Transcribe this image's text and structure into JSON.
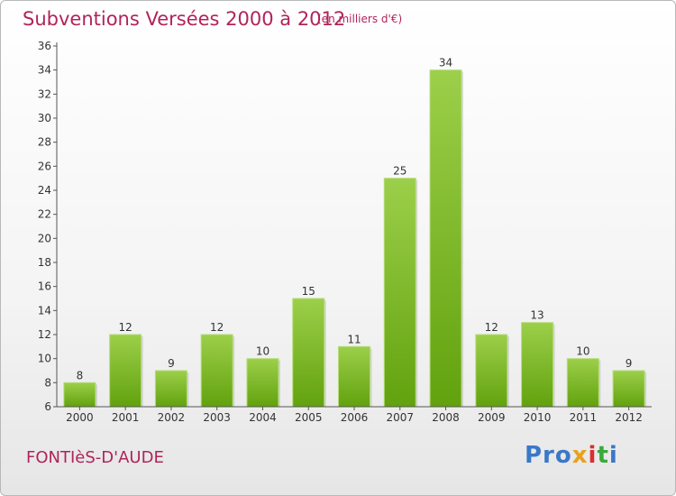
{
  "header": {
    "title": "Subventions Versées 2000 à 2012",
    "unit": "(en milliers d'€)"
  },
  "footer": {
    "place": "FONTIèS-D'AUDE",
    "logo": [
      "Pro",
      "x",
      "i",
      "t",
      "i"
    ]
  },
  "colors": {
    "accent": "#b0245a",
    "bar_light": "#9ccf4a",
    "bar_dark": "#62a20e"
  },
  "chart_data": {
    "type": "bar",
    "categories": [
      "2000",
      "2001",
      "2002",
      "2003",
      "2004",
      "2005",
      "2006",
      "2007",
      "2008",
      "2009",
      "2010",
      "2011",
      "2012"
    ],
    "values": [
      8,
      12,
      9,
      12,
      10,
      15,
      11,
      25,
      34,
      12,
      13,
      10,
      9
    ],
    "data_labels": [
      "8",
      "12",
      "9",
      "12",
      "10",
      "15",
      "11",
      "25",
      "34",
      "12",
      "13",
      "10",
      "9"
    ],
    "y_ticks": [
      "6",
      "8",
      "10",
      "12",
      "14",
      "16",
      "18",
      "20",
      "22",
      "24",
      "26",
      "28",
      "30",
      "32",
      "34",
      "36"
    ],
    "title": "Subventions Versées 2000 à 2012",
    "xlabel": "",
    "ylabel": "",
    "ylim": [
      6,
      36
    ],
    "grid": false,
    "legend": "none"
  }
}
